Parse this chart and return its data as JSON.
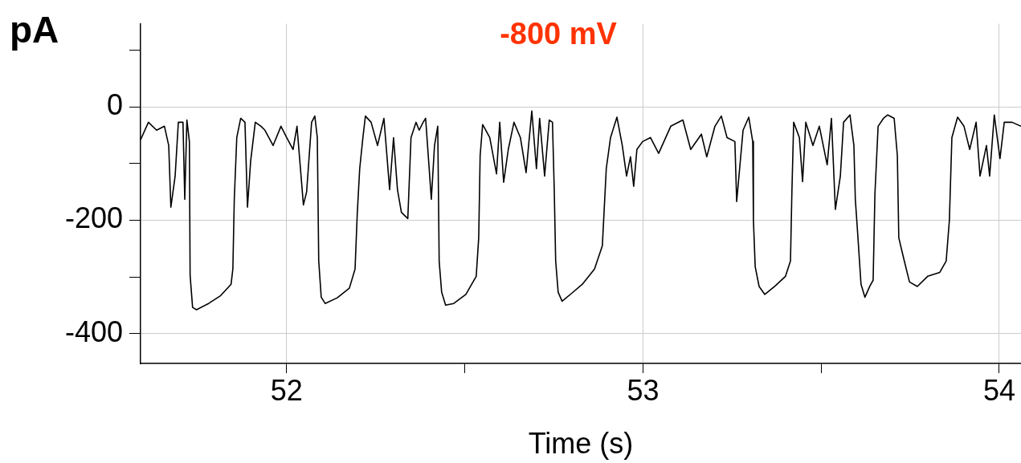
{
  "chart_data": {
    "type": "line",
    "title": "-800 mV",
    "xlabel": "Time (s)",
    "ylabel": "pA",
    "xlim": [
      51.59,
      54.061
    ],
    "ylim": [
      -453,
      147
    ],
    "xticks": [
      52,
      {
        "value": 52.5,
        "label": null
      },
      53,
      {
        "value": 53.5,
        "label": null
      },
      54
    ],
    "yticks": [
      {
        "value": 100,
        "label": null
      },
      0,
      {
        "value": -100,
        "label": null
      },
      -200,
      {
        "value": -300,
        "label": null
      },
      -400
    ],
    "grid": true,
    "legend": false,
    "series": [
      {
        "color": "#000000",
        "x": [
          51.59,
          51.612,
          51.635,
          51.657,
          51.669,
          51.675,
          51.687,
          51.696,
          51.709,
          51.714,
          51.72,
          51.727,
          51.729,
          51.736,
          51.747,
          51.781,
          51.815,
          51.844,
          51.849,
          51.853,
          51.86,
          51.871,
          51.883,
          51.89,
          51.899,
          51.912,
          51.928,
          51.939,
          51.962,
          51.984,
          52.0,
          52.018,
          52.029,
          52.047,
          52.056,
          52.07,
          52.079,
          52.086,
          52.09,
          52.097,
          52.108,
          52.142,
          52.176,
          52.192,
          52.198,
          52.205,
          52.214,
          52.221,
          52.237,
          52.255,
          52.273,
          52.289,
          52.3,
          52.311,
          52.322,
          52.34,
          52.349,
          52.363,
          52.372,
          52.383,
          52.39,
          52.397,
          52.406,
          52.415,
          52.424,
          52.426,
          52.428,
          52.435,
          52.446,
          52.469,
          52.503,
          52.532,
          52.539,
          52.543,
          52.55,
          52.57,
          52.589,
          52.598,
          52.609,
          52.622,
          52.638,
          52.656,
          52.672,
          52.688,
          52.701,
          52.71,
          52.724,
          52.737,
          52.746,
          52.751,
          52.755,
          52.762,
          52.773,
          52.8,
          52.83,
          52.864,
          52.886,
          52.897,
          52.909,
          52.927,
          52.942,
          52.954,
          52.965,
          52.974,
          52.983,
          52.999,
          53.021,
          53.044,
          53.078,
          53.112,
          53.134,
          53.164,
          53.179,
          53.202,
          53.22,
          53.236,
          53.258,
          53.263,
          53.281,
          53.297,
          53.308,
          53.31,
          53.315,
          53.326,
          53.342,
          53.371,
          53.4,
          53.414,
          53.418,
          53.423,
          53.439,
          53.448,
          53.457,
          53.477,
          53.495,
          53.517,
          53.529,
          53.54,
          53.554,
          53.563,
          53.581,
          53.592,
          53.596,
          53.603,
          53.612,
          53.623,
          53.637,
          53.646,
          53.651,
          53.66,
          53.675,
          53.687,
          53.705,
          53.714,
          53.718,
          53.732,
          53.748,
          53.77,
          53.799,
          53.833,
          53.851,
          53.86,
          53.867,
          53.883,
          53.901,
          53.917,
          53.935,
          53.946,
          53.964,
          53.973,
          53.986,
          54.002,
          54.014,
          54.036,
          54.061
        ],
        "values": [
          -58,
          -27,
          -41,
          -34,
          -68,
          -177,
          -122,
          -27,
          -27,
          -163,
          -23,
          -61,
          -297,
          -354,
          -358,
          -347,
          -333,
          -313,
          -286,
          -163,
          -54,
          -20,
          -27,
          -177,
          -95,
          -27,
          -34,
          -41,
          -68,
          -34,
          -54,
          -75,
          -34,
          -173,
          -150,
          -27,
          -16,
          -54,
          -272,
          -336,
          -347,
          -337,
          -320,
          -286,
          -190,
          -109,
          -54,
          -16,
          -27,
          -68,
          -20,
          -146,
          -54,
          -146,
          -186,
          -197,
          -54,
          -27,
          -41,
          -27,
          -20,
          -82,
          -163,
          -68,
          -34,
          -150,
          -272,
          -327,
          -350,
          -347,
          -331,
          -299,
          -231,
          -86,
          -31,
          -54,
          -118,
          -27,
          -133,
          -75,
          -27,
          -54,
          -116,
          -7,
          -109,
          -20,
          -122,
          -23,
          -27,
          -146,
          -272,
          -327,
          -343,
          -329,
          -313,
          -286,
          -245,
          -109,
          -54,
          -18,
          -68,
          -122,
          -88,
          -140,
          -75,
          -61,
          -54,
          -82,
          -34,
          -23,
          -75,
          -48,
          -88,
          -34,
          -16,
          -54,
          -61,
          -167,
          -41,
          -18,
          -61,
          -200,
          -282,
          -317,
          -331,
          -316,
          -299,
          -272,
          -150,
          -27,
          -54,
          -132,
          -27,
          -68,
          -34,
          -102,
          -20,
          -181,
          -122,
          -27,
          -14,
          -68,
          -163,
          -227,
          -313,
          -336,
          -316,
          -306,
          -154,
          -34,
          -20,
          -14,
          -20,
          -86,
          -231,
          -268,
          -309,
          -317,
          -299,
          -292,
          -272,
          -200,
          -54,
          -18,
          -34,
          -75,
          -27,
          -122,
          -68,
          -122,
          -14,
          -91,
          -27,
          -27,
          -34
        ]
      }
    ]
  }
}
